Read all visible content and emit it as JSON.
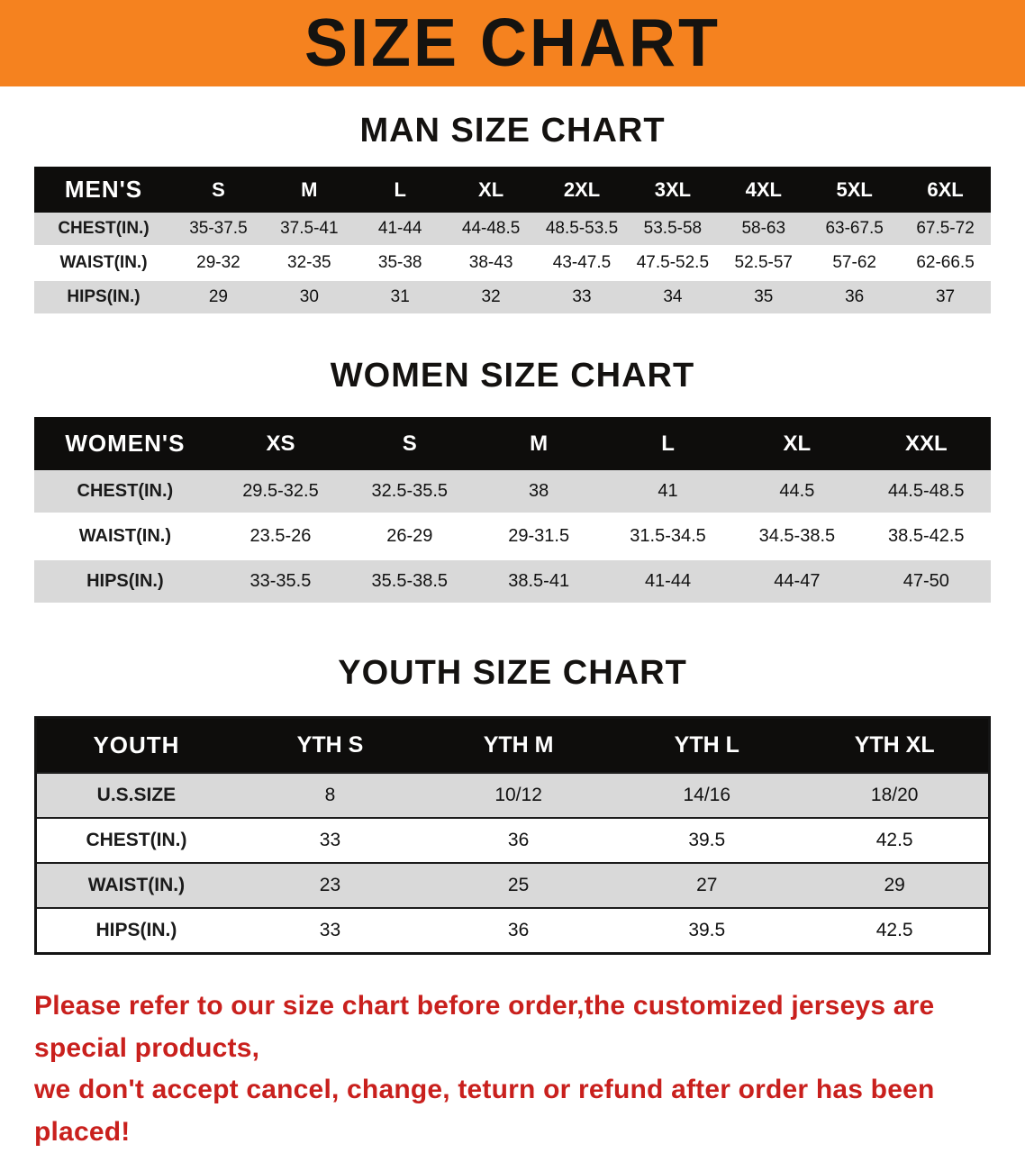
{
  "banner": {
    "title": "SIZE CHART"
  },
  "colors": {
    "banner_bg": "#f5821f",
    "table_header_bg": "#0e0d0c",
    "row_stripe": "#d9d9d9",
    "footer_text": "#c9201d"
  },
  "sections": [
    {
      "heading": "MAN SIZE CHART",
      "table": {
        "header": [
          "MEN'S",
          "S",
          "M",
          "L",
          "XL",
          "2XL",
          "3XL",
          "4XL",
          "5XL",
          "6XL"
        ],
        "rows": [
          [
            "CHEST(IN.)",
            "35-37.5",
            "37.5-41",
            "41-44",
            "44-48.5",
            "48.5-53.5",
            "53.5-58",
            "58-63",
            "63-67.5",
            "67.5-72"
          ],
          [
            "WAIST(IN.)",
            "29-32",
            "32-35",
            "35-38",
            "38-43",
            "43-47.5",
            "47.5-52.5",
            "52.5-57",
            "57-62",
            "62-66.5"
          ],
          [
            "HIPS(IN.)",
            "29",
            "30",
            "31",
            "32",
            "33",
            "34",
            "35",
            "36",
            "37"
          ]
        ]
      }
    },
    {
      "heading": "WOMEN SIZE CHART",
      "table": {
        "header": [
          "WOMEN'S",
          "XS",
          "S",
          "M",
          "L",
          "XL",
          "XXL"
        ],
        "rows": [
          [
            "CHEST(IN.)",
            "29.5-32.5",
            "32.5-35.5",
            "38",
            "41",
            "44.5",
            "44.5-48.5"
          ],
          [
            "WAIST(IN.)",
            "23.5-26",
            "26-29",
            "29-31.5",
            "31.5-34.5",
            "34.5-38.5",
            "38.5-42.5"
          ],
          [
            "HIPS(IN.)",
            "33-35.5",
            "35.5-38.5",
            "38.5-41",
            "41-44",
            "44-47",
            "47-50"
          ]
        ]
      }
    },
    {
      "heading": "YOUTH SIZE CHART",
      "table": {
        "header": [
          "YOUTH",
          "YTH S",
          "YTH M",
          "YTH L",
          "YTH XL"
        ],
        "rows": [
          [
            "U.S.SIZE",
            "8",
            "10/12",
            "14/16",
            "18/20"
          ],
          [
            "CHEST(IN.)",
            "33",
            "36",
            "39.5",
            "42.5"
          ],
          [
            "WAIST(IN.)",
            "23",
            "25",
            "27",
            "29"
          ],
          [
            "HIPS(IN.)",
            "33",
            "36",
            "39.5",
            "42.5"
          ]
        ]
      }
    }
  ],
  "footer": {
    "line1": "Please refer to our size chart before order,the customized jerseys are special products,",
    "line2": "we don't accept cancel, change, teturn or refund after order has been placed!"
  }
}
